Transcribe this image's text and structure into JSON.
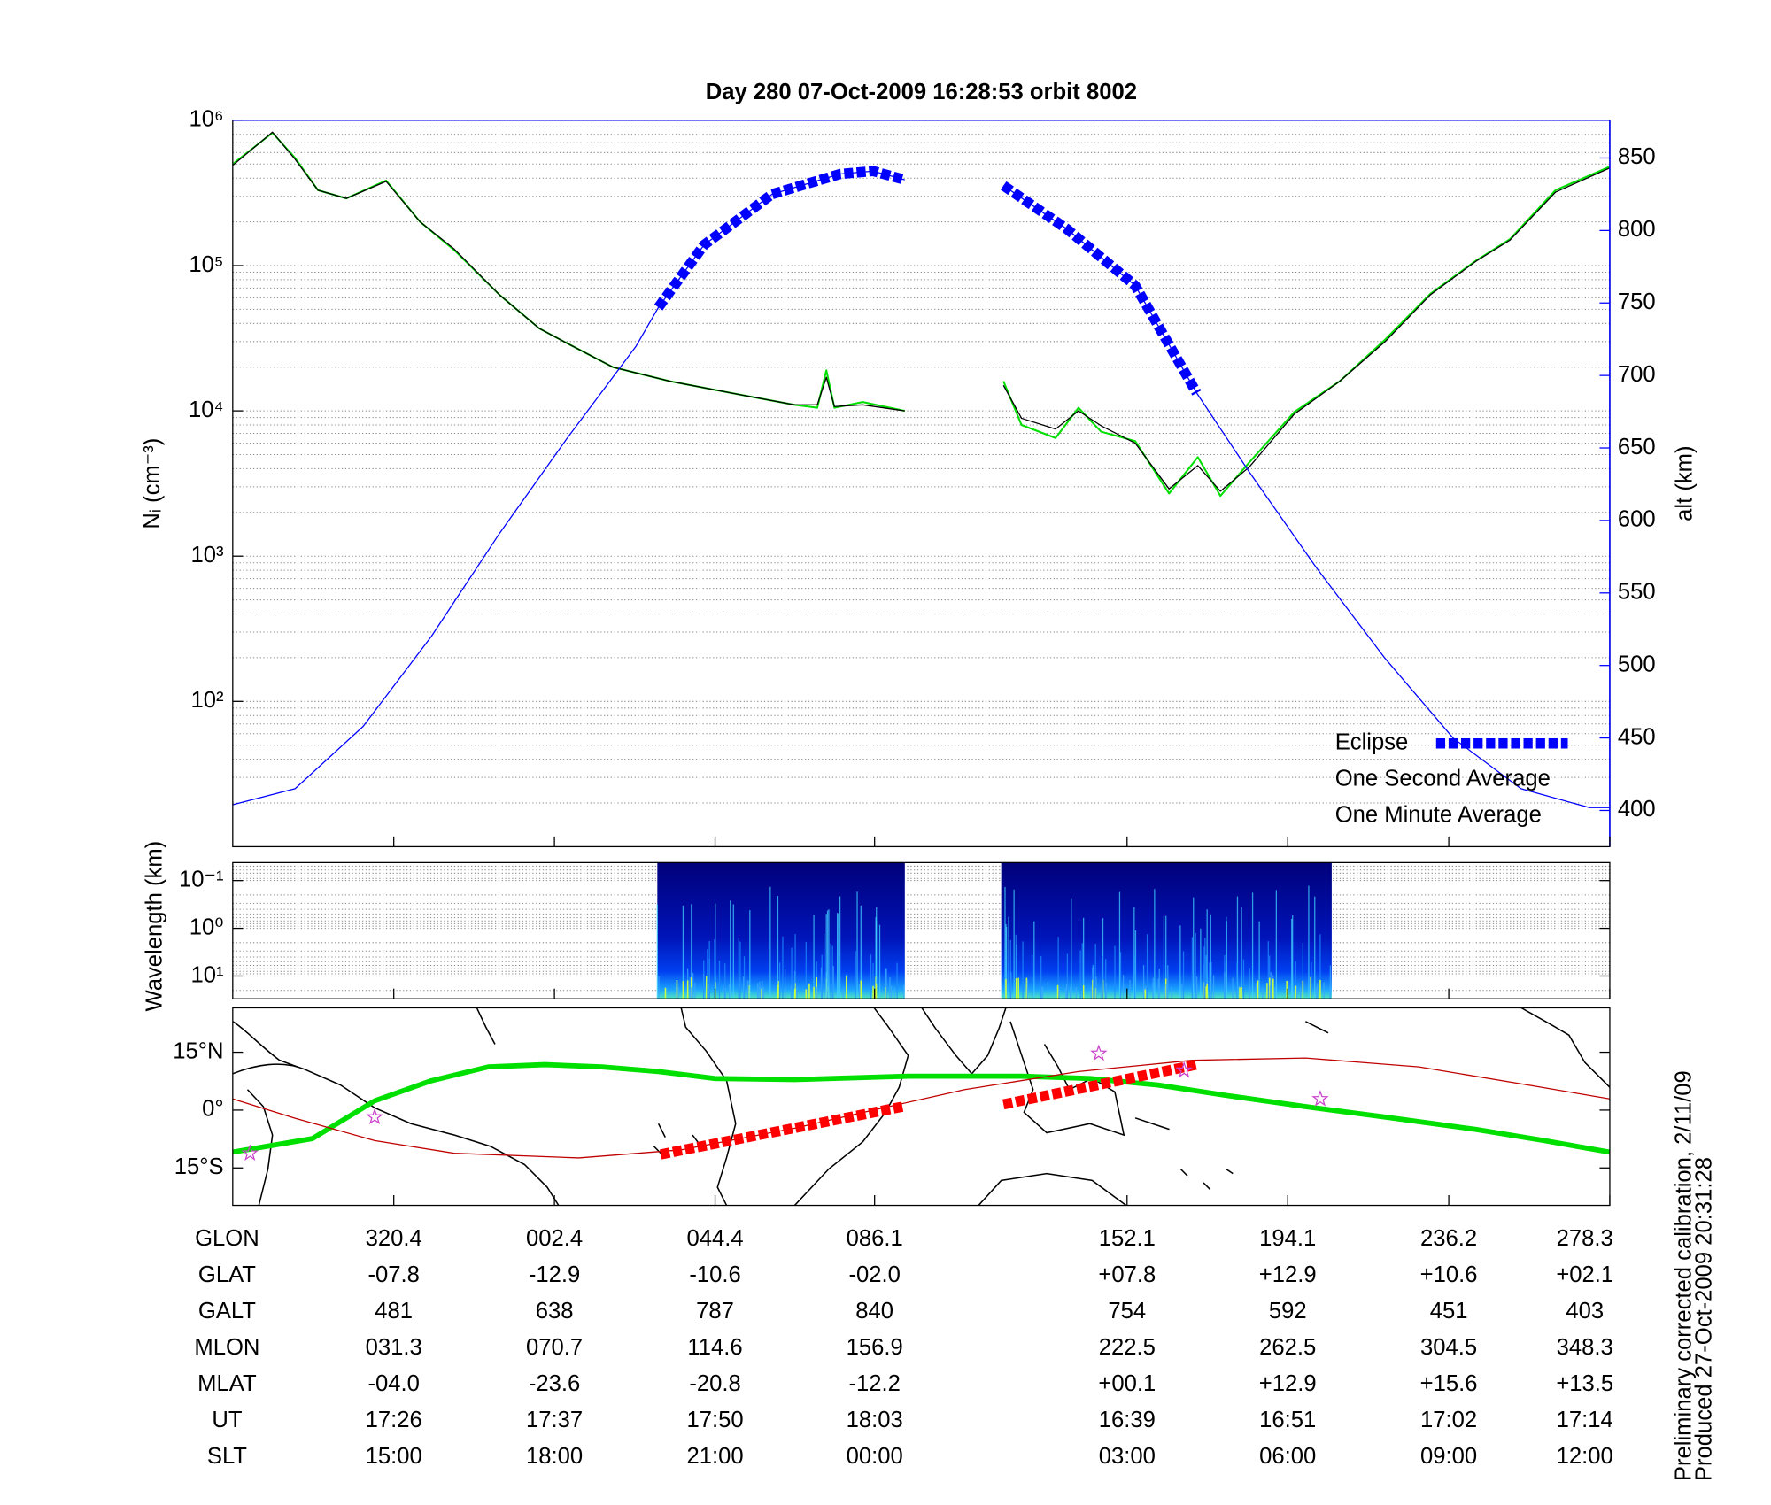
{
  "chart_data": [
    {
      "type": "line",
      "title": "Day 280  07-Oct-2009 16:28:53   orbit 8002",
      "ylabel": "Nᵢ (cm⁻³)",
      "y2label": "alt (km)",
      "y2_color": "#0000ff",
      "xlim": [
        278.3,
        638.3
      ],
      "xticks": [
        320.4,
        362.4,
        404.4,
        446.1,
        512.1,
        554.1,
        596.2,
        638.3
      ],
      "ylim": [
        10,
        1000000
      ],
      "ylog": true,
      "yticks": [
        {
          "value": 100,
          "label": "10²"
        },
        {
          "value": 1000,
          "label": "10³"
        },
        {
          "value": 10000,
          "label": "10⁴"
        },
        {
          "value": 100000,
          "label": "10⁵"
        },
        {
          "value": 1000000,
          "label": "10⁶"
        }
      ],
      "y2lim": [
        375,
        876
      ],
      "y2ticks": [
        400,
        450,
        500,
        550,
        600,
        650,
        700,
        750,
        800,
        850
      ],
      "grid": true,
      "legend": "lower right",
      "series": [
        {
          "name": "Eclipse",
          "color": "#0000ff",
          "axis": "y2",
          "style": "squares",
          "x": [
            389.6,
            401.5,
            419.3,
            437.1,
            445.7,
            454.0,
            null,
            479.8,
            496.4,
            514.2,
            530.3
          ],
          "values": [
            747,
            790,
            825,
            839,
            841,
            835,
            null,
            831,
            801,
            762,
            688
          ]
        },
        {
          "name": "One Second Average",
          "color": "#00e000",
          "style": "medium",
          "x": [
            278.3,
            288.7,
            294.6,
            300.6,
            308.0,
            318.4,
            327.3,
            336.2,
            348.0,
            358.4,
            365.9,
            377.7,
            392.6,
            410.4,
            425.2,
            431.1,
            433.5,
            435.6,
            443.0,
            454.0,
            null,
            479.8,
            484.5,
            493.4,
            499.4,
            505.3,
            514.2,
            523.1,
            530.6,
            536.5,
            544.0,
            555.8,
            567.7,
            579.6,
            591.4,
            603.3,
            612.2,
            624.1,
            638.3
          ],
          "values": [
            500000,
            820000,
            550000,
            330000,
            290000,
            385000,
            200000,
            128000,
            63000,
            37000,
            29000,
            20000,
            16000,
            13000,
            11000,
            10500,
            19000,
            10500,
            11500,
            10000,
            null,
            16000,
            8000,
            6500,
            10500,
            7200,
            6200,
            2700,
            4800,
            2600,
            4400,
            9800,
            16000,
            31000,
            64000,
            108000,
            152000,
            330000,
            480000
          ]
        },
        {
          "name": "One Minute Average",
          "color": "#000000",
          "style": "thin",
          "x": [
            278.3,
            288.7,
            294.6,
            300.6,
            308.0,
            318.4,
            327.3,
            336.2,
            348.0,
            358.4,
            365.9,
            377.7,
            392.6,
            410.4,
            425.2,
            431.1,
            433.5,
            435.6,
            443.0,
            454.0,
            null,
            479.8,
            484.5,
            493.4,
            499.4,
            505.3,
            514.2,
            523.1,
            530.6,
            536.5,
            544.0,
            555.8,
            567.7,
            579.6,
            591.4,
            603.3,
            612.2,
            624.1,
            638.3
          ],
          "values": [
            490000,
            830000,
            540000,
            330000,
            290000,
            380000,
            200000,
            130000,
            63000,
            37000,
            29000,
            20000,
            16000,
            13000,
            11000,
            11000,
            17000,
            10700,
            11000,
            10000,
            null,
            15000,
            8900,
            7500,
            10000,
            7900,
            6000,
            2900,
            4200,
            2800,
            4100,
            9500,
            16000,
            30000,
            63000,
            107000,
            150000,
            320000,
            470000
          ]
        },
        {
          "color": "#0000ff",
          "axis": "y2",
          "style": "thin",
          "x": [
            278.3,
            294.6,
            312.4,
            330.2,
            348.0,
            365.8,
            383.7,
            389.6,
            401.5,
            419.3,
            437.1,
            445.7,
            454.0,
            null,
            479.8,
            496.4,
            514.2,
            530.3,
            543.9,
            561.7,
            579.5,
            597.3,
            615.1,
            632.9,
            638.3
          ],
          "values": [
            404,
            415,
            458,
            520,
            591,
            657,
            720,
            747,
            790,
            825,
            839,
            841,
            835,
            null,
            831,
            801,
            762,
            688,
            634,
            567,
            505,
            450,
            415,
            402,
            402
          ]
        }
      ]
    },
    {
      "type": "spectrogram",
      "ylabel": "Wavelength (km)",
      "xlim": [
        278.3,
        638.3
      ],
      "xticks": [
        320.4,
        362.4,
        404.4,
        446.1,
        512.1,
        554.1,
        596.2,
        638.3
      ],
      "ylim": [
        0.042,
        30
      ],
      "ylog": true,
      "yreverse": true,
      "yticks": [
        {
          "value": 0.1,
          "label": "10⁻¹"
        },
        {
          "value": 1,
          "label": "10⁰"
        },
        {
          "value": 10,
          "label": "10¹"
        }
      ],
      "grid": true,
      "x_ranges": [
        [
          389.3,
          454.0
        ],
        [
          479.2,
          565.6
        ]
      ]
    },
    {
      "type": "map",
      "xlim": [
        278.3,
        638.3
      ],
      "xticks": [
        320.4,
        362.4,
        404.4,
        446.1,
        512.1,
        554.1,
        596.2,
        638.3
      ],
      "ylim": [
        -24.7,
        26.5
      ],
      "yticks": [
        {
          "value": 15,
          "label": "15°N"
        },
        {
          "value": 0,
          "label": "0°"
        },
        {
          "value": -15,
          "label": "15°S"
        }
      ],
      "series": [
        {
          "color": "#00e000",
          "style": "bold",
          "x": [
            278.3,
            299.1,
            315.4,
            330.2,
            345.1,
            359.9,
            374.8,
            389.6,
            404.4,
            425.2,
            454.9,
            484.6,
            502.4,
            520.2,
            538.0,
            558.8,
            579.5,
            603.3,
            621.1,
            638.3
          ],
          "values": [
            -10.9,
            -7.4,
            2.4,
            7.6,
            11.2,
            11.8,
            11.2,
            10.0,
            8.2,
            7.9,
            8.8,
            8.8,
            8.2,
            6.5,
            3.8,
            0.9,
            -1.8,
            -5.0,
            -7.9,
            -10.9
          ]
        },
        {
          "color": "#c00000",
          "style": "thin",
          "x": [
            278.3,
            294.6,
            315.4,
            336.2,
            368.8,
            395.5,
            425.2,
            445.7,
            469.7,
            499.4,
            529.1,
            558.8,
            588.4,
            615.1,
            638.3
          ],
          "values": [
            2.9,
            -2.1,
            -7.9,
            -11.2,
            -12.4,
            -10.3,
            -4.7,
            0,
            5.3,
            10.0,
            12.9,
            13.5,
            11.2,
            6.8,
            2.9
          ]
        },
        {
          "color": "#ff0000",
          "style": "squares",
          "x": [
            390.2,
            453.5,
            null,
            479.8,
            530.3
          ],
          "values": [
            -11.5,
            0.9,
            null,
            1.5,
            11.8
          ]
        },
        {
          "color": "#cc44cc",
          "style": "stars",
          "x": [
            282.8,
            315.4,
            504.7,
            527.0,
            562.6
          ],
          "values": [
            -11.2,
            -1.8,
            14.7,
            10.3,
            2.9
          ]
        }
      ]
    }
  ],
  "table": {
    "rows": [
      {
        "label": "GLON",
        "values": [
          "320.4",
          "002.4",
          "044.4",
          "086.1",
          "152.1",
          "194.1",
          "236.2",
          "278.3"
        ]
      },
      {
        "label": "GLAT",
        "values": [
          "-07.8",
          "-12.9",
          "-10.6",
          "-02.0",
          "+07.8",
          "+12.9",
          "+10.6",
          "+02.1"
        ]
      },
      {
        "label": "GALT",
        "values": [
          "481",
          "638",
          "787",
          "840",
          "754",
          "592",
          "451",
          "403"
        ]
      },
      {
        "label": "MLON",
        "values": [
          "031.3",
          "070.7",
          "114.6",
          "156.9",
          "222.5",
          "262.5",
          "304.5",
          "348.3"
        ]
      },
      {
        "label": "MLAT",
        "values": [
          "-04.0",
          "-23.6",
          "-20.8",
          "-12.2",
          "+00.1",
          "+12.9",
          "+15.6",
          "+13.5"
        ]
      },
      {
        "label": "UT",
        "values": [
          "17:26",
          "17:37",
          "17:50",
          "18:03",
          "16:39",
          "16:51",
          "17:02",
          "17:14"
        ]
      },
      {
        "label": "SLT",
        "values": [
          "15:00",
          "18:00",
          "21:00",
          "00:00",
          "03:00",
          "06:00",
          "09:00",
          "12:00"
        ]
      }
    ]
  },
  "notes": [
    "Preliminary corrected calibration, 2/11/09",
    "Produced 27-Oct-2009 20:31:28"
  ]
}
